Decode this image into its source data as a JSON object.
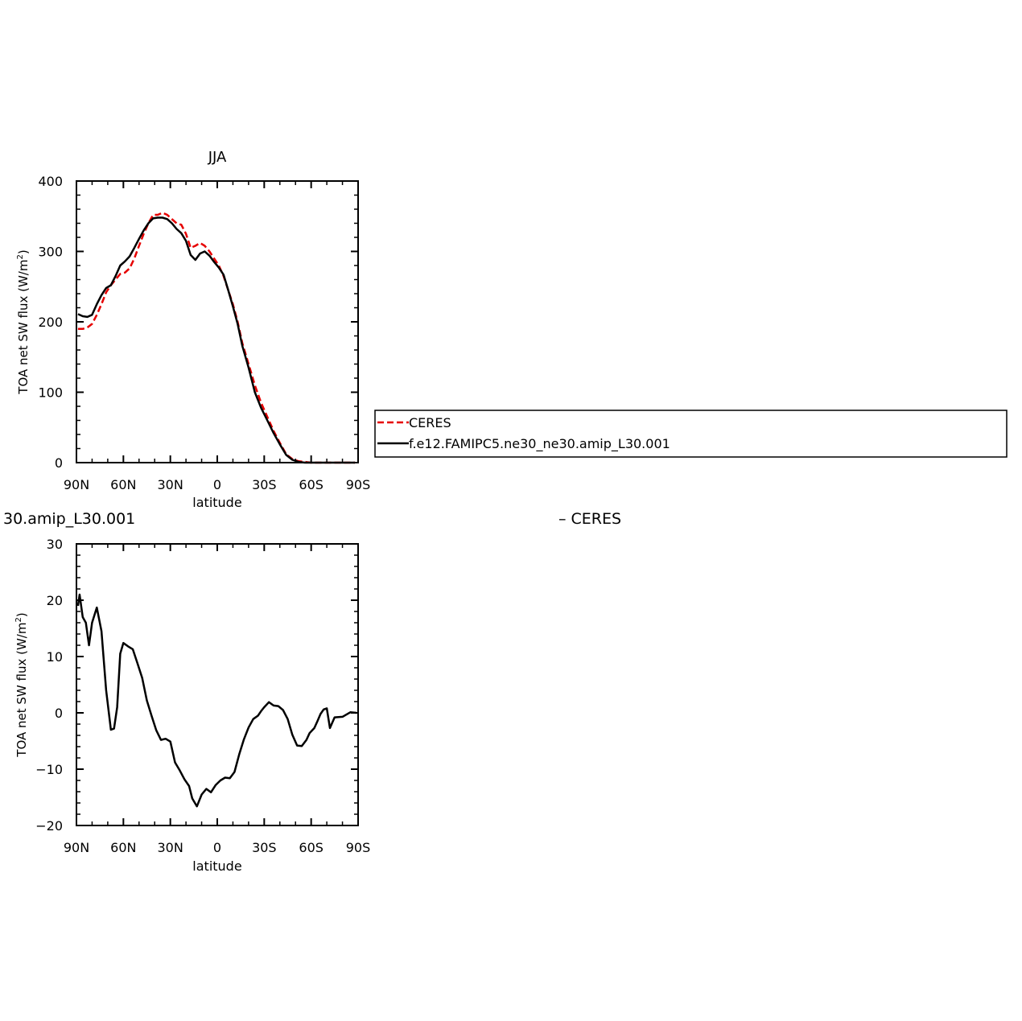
{
  "chart_data": [
    {
      "type": "line",
      "title": "JJA",
      "xlabel": "latitude",
      "ylabel": "TOA net SW flux (W/m",
      "ylabel_sup": "2",
      "ylabel_close": ")",
      "xlim": [
        90,
        -90
      ],
      "ylim": [
        0,
        400
      ],
      "x_ticks": [
        {
          "value": 90,
          "label": "90N"
        },
        {
          "value": 60,
          "label": "60N"
        },
        {
          "value": 30,
          "label": "30N"
        },
        {
          "value": 0,
          "label": "0"
        },
        {
          "value": -30,
          "label": "30S"
        },
        {
          "value": -60,
          "label": "60S"
        },
        {
          "value": -90,
          "label": "90S"
        }
      ],
      "y_ticks": [
        {
          "value": 0,
          "label": "0"
        },
        {
          "value": 100,
          "label": "100"
        },
        {
          "value": 200,
          "label": "200"
        },
        {
          "value": 300,
          "label": "300"
        },
        {
          "value": 400,
          "label": "400"
        }
      ],
      "legend": {
        "placement": "right",
        "entries": [
          {
            "name": "CERES",
            "color": "#e60000",
            "dash": "dashed"
          },
          {
            "name": "f.e12.FAMIPC5.ne30_ne30.amip_L30.001",
            "color": "#000000",
            "dash": "solid"
          }
        ]
      },
      "series": [
        {
          "name": "CERES",
          "color": "#e60000",
          "dash": "dashed",
          "x": [
            89,
            86,
            83,
            80,
            77,
            74,
            71,
            68,
            65,
            62,
            59,
            56,
            53,
            50,
            47,
            44,
            41,
            38,
            35,
            32,
            29,
            26,
            23,
            20,
            17,
            14,
            11,
            8,
            5,
            2,
            -1,
            -4,
            -7,
            -10,
            -13,
            -16,
            -20,
            -24,
            -28,
            -32,
            -36,
            -40,
            -44,
            -48,
            -52,
            -56,
            -60,
            -64,
            -67,
            -70,
            -73,
            -76,
            -80,
            -84,
            -88
          ],
          "y": [
            190,
            190,
            192,
            197,
            210,
            225,
            242,
            252,
            260,
            268,
            270,
            276,
            290,
            308,
            325,
            340,
            352,
            352,
            355,
            352,
            346,
            340,
            338,
            325,
            305,
            308,
            312,
            308,
            300,
            290,
            280,
            265,
            245,
            225,
            200,
            170,
            140,
            110,
            85,
            65,
            45,
            28,
            12,
            5,
            2,
            1,
            0,
            0,
            0,
            0,
            0,
            0,
            0,
            0,
            0
          ]
        },
        {
          "name": "f.e12.FAMIPC5.ne30_ne30.amip_L30.001",
          "color": "#000000",
          "dash": "solid",
          "x": [
            89,
            86,
            83,
            80,
            77,
            74,
            71,
            68,
            65,
            62,
            59,
            56,
            53,
            50,
            47,
            44,
            41,
            38,
            35,
            32,
            29,
            26,
            23,
            20,
            17,
            14,
            11,
            8,
            5,
            2,
            -1,
            -4,
            -7,
            -10,
            -13,
            -16,
            -20,
            -24,
            -28,
            -32,
            -36,
            -40,
            -44,
            -48,
            -52,
            -56,
            -60,
            -64,
            -67,
            -70,
            -73,
            -76,
            -80,
            -84,
            -88
          ],
          "y": [
            211,
            208,
            207,
            210,
            225,
            238,
            248,
            252,
            265,
            280,
            286,
            293,
            305,
            318,
            330,
            340,
            347,
            348,
            348,
            346,
            340,
            332,
            326,
            315,
            295,
            288,
            297,
            300,
            294,
            285,
            277,
            267,
            245,
            222,
            197,
            166,
            135,
            100,
            78,
            60,
            42,
            26,
            11,
            4,
            1,
            0,
            0,
            0,
            0,
            0,
            0,
            0,
            0,
            0,
            0
          ]
        }
      ]
    },
    {
      "type": "line",
      "title": "30.amip_L30.001",
      "title_right": "– CERES",
      "xlabel": "latitude",
      "ylabel": "TOA net SW flux (W/m",
      "ylabel_sup": "2",
      "ylabel_close": ")",
      "xlim": [
        90,
        -90
      ],
      "ylim": [
        -20,
        30
      ],
      "x_ticks": [
        {
          "value": 90,
          "label": "90N"
        },
        {
          "value": 60,
          "label": "60N"
        },
        {
          "value": 30,
          "label": "30N"
        },
        {
          "value": 0,
          "label": "0"
        },
        {
          "value": -30,
          "label": "30S"
        },
        {
          "value": -60,
          "label": "60S"
        },
        {
          "value": -90,
          "label": "90S"
        }
      ],
      "y_ticks": [
        {
          "value": -20,
          "label": "−20"
        },
        {
          "value": -10,
          "label": "−10"
        },
        {
          "value": 0,
          "label": "0"
        },
        {
          "value": 10,
          "label": "10"
        },
        {
          "value": 20,
          "label": "20"
        },
        {
          "value": 30,
          "label": "30"
        }
      ],
      "series": [
        {
          "name": "",
          "color": "#000000",
          "dash": "solid",
          "x": [
            89,
            88,
            86,
            84,
            82,
            80,
            77,
            74,
            71,
            68,
            66,
            64,
            62,
            60,
            57,
            54,
            51,
            48,
            45,
            42,
            39,
            36,
            33,
            30,
            27,
            24,
            21,
            18,
            16,
            13,
            10,
            7,
            4,
            1,
            -2,
            -5,
            -8,
            -11,
            -14,
            -17,
            -20,
            -23,
            -26,
            -28,
            -30,
            -33,
            -36,
            -39,
            -42,
            -45,
            -48,
            -51,
            -54,
            -57,
            -59,
            -62,
            -64,
            -66,
            -68,
            -70,
            -72,
            -75,
            -80,
            -85,
            -89
          ],
          "y": [
            19,
            21,
            17,
            16,
            12,
            16,
            18.7,
            14.5,
            4,
            -3,
            -2.8,
            1,
            10.5,
            12.4,
            11.8,
            11.3,
            8.8,
            6.2,
            2.2,
            -0.5,
            -3.1,
            -4.8,
            -4.6,
            -5.1,
            -8.8,
            -10.2,
            -11.8,
            -13,
            -15.2,
            -16.6,
            -14.5,
            -13.5,
            -14.1,
            -12.8,
            -12,
            -11.5,
            -11.6,
            -10.5,
            -7.4,
            -4.7,
            -2.6,
            -1.1,
            -0.5,
            0.3,
            1,
            1.9,
            1.3,
            1.2,
            0.5,
            -1.1,
            -3.9,
            -5.8,
            -5.9,
            -4.8,
            -3.6,
            -2.7,
            -1.5,
            -0.2,
            0.6,
            0.8,
            -2.7,
            -0.8,
            -0.7,
            0.1,
            0
          ]
        }
      ]
    }
  ]
}
